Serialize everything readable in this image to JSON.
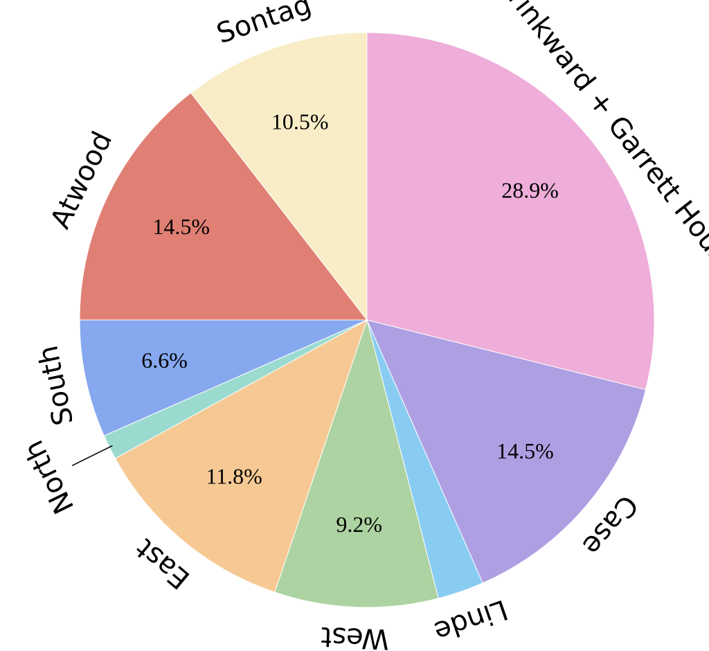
{
  "chart_data": {
    "type": "pie",
    "categories": [
      "Drinkward + Garrett House",
      "Case",
      "Linde",
      "West",
      "East",
      "North",
      "South",
      "Atwood",
      "Sontag"
    ],
    "values": [
      28.9,
      14.5,
      2.6,
      9.2,
      11.8,
      1.4,
      6.6,
      14.5,
      10.5
    ],
    "value_labels": [
      "28.9%",
      "14.5%",
      null,
      "9.2%",
      "11.8%",
      null,
      "6.6%",
      "14.5%",
      "10.5%"
    ],
    "colors": [
      "#eeaed9",
      "#ae9fe3",
      "#89ccf2",
      "#acd3a1",
      "#f6c994",
      "#9bdbcf",
      "#86a8ee",
      "#e07f74",
      "#f8edc6"
    ]
  }
}
